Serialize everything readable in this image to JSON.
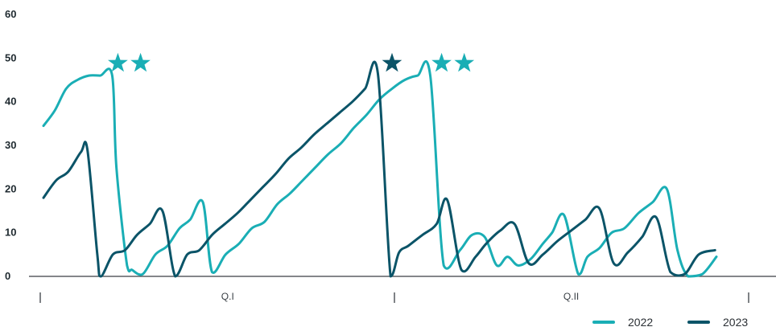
{
  "chart_data": {
    "type": "line",
    "ylim": [
      0,
      60
    ],
    "yticks": [
      "0",
      "10",
      "20",
      "30",
      "40",
      "50",
      "60"
    ],
    "xlim": [
      0,
      100
    ],
    "section_labels": [
      {
        "label": "Q.I",
        "x": 26
      },
      {
        "label": "Q.II",
        "x": 74.5
      }
    ],
    "section_dividers": [
      0,
      50,
      100
    ],
    "grid": false,
    "legend_position": "bottom-right",
    "colors": {
      "2022": "#1aaeb5",
      "2023": "#0b5468"
    },
    "series": [
      {
        "name": "2022",
        "x": [
          0,
          1.6,
          3.2,
          4.8,
          6.4,
          8,
          9.7,
          10.3,
          11.8,
          12.5,
          14,
          15.8,
          17.5,
          19.2,
          20.7,
          22.5,
          23.8,
          25.7,
          27.6,
          29.4,
          31.2,
          33,
          34.8,
          36.6,
          38.4,
          40.2,
          42,
          43.8,
          45.6,
          47.4,
          49.2,
          51,
          52.8,
          54.6,
          56.5,
          58.8,
          60.5,
          62.3,
          64,
          65.5,
          67,
          68.8,
          70.5,
          71.8,
          73.5,
          75.5,
          76.8,
          78.5,
          80.2,
          82,
          84,
          86,
          88,
          89.5,
          91,
          93,
          95
        ],
        "values": [
          34.5,
          38,
          43,
          45,
          46,
          46,
          46,
          25,
          2.5,
          1.5,
          0.5,
          5,
          7,
          11,
          13,
          17,
          1,
          5,
          7.5,
          11,
          12.5,
          16.5,
          19,
          22,
          25,
          28,
          30.5,
          34,
          37,
          40.5,
          43,
          45,
          46,
          46,
          2.5,
          6,
          9.5,
          9,
          2.5,
          4.5,
          2.5,
          4,
          7.5,
          10,
          14,
          0.5,
          4.5,
          6.5,
          10,
          11,
          14.5,
          17,
          20,
          6,
          0,
          0.5,
          4.5
        ]
      },
      {
        "name": "2023",
        "x": [
          0,
          1.8,
          3.5,
          5.3,
          6.2,
          7.6,
          8.1,
          9.8,
          11.5,
          13.2,
          15,
          16.8,
          18.6,
          20.3,
          22,
          23.8,
          25.6,
          27.4,
          29.2,
          31,
          32.8,
          34.6,
          36.4,
          38.2,
          40,
          41.8,
          43.6,
          45.4,
          47.2,
          49,
          50.2,
          51.5,
          53.5,
          55.5,
          57,
          59,
          61,
          62.5,
          64.5,
          66.5,
          68.5,
          70.5,
          72.5,
          74.5,
          76.5,
          78.5,
          80.5,
          82.5,
          84.5,
          86.5,
          88.5,
          90.5,
          92.5,
          94.8
        ],
        "values": [
          18,
          22,
          24,
          28.5,
          29,
          5,
          0,
          5,
          6,
          9.5,
          12,
          15,
          0,
          5,
          6,
          9.5,
          12,
          14.5,
          17.5,
          20.5,
          23.5,
          27,
          29.5,
          32.5,
          35,
          37.5,
          40,
          43,
          46.5,
          0,
          5.5,
          7,
          9.5,
          12,
          17.5,
          1.5,
          4.5,
          7.5,
          10.5,
          12,
          3,
          5,
          8,
          10.5,
          13,
          15.5,
          3,
          5.5,
          9,
          13.5,
          1,
          0.5,
          5,
          6
        ]
      }
    ],
    "star_markers": [
      {
        "series": "2022",
        "x": 10.5,
        "y": 49
      },
      {
        "series": "2022",
        "x": 13.7,
        "y": 49
      },
      {
        "series": "2023",
        "x": 49.2,
        "y": 49
      },
      {
        "series": "2022",
        "x": 56.2,
        "y": 49
      },
      {
        "series": "2022",
        "x": 59.4,
        "y": 49
      }
    ]
  }
}
